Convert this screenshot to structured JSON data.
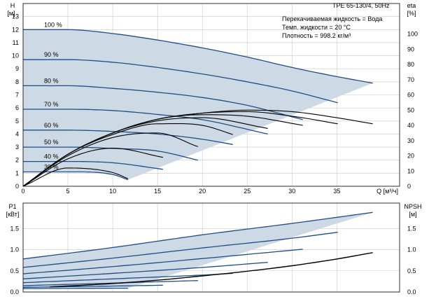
{
  "header": {
    "model": "TPE 65-130/4, 50Hz",
    "fluid_line": "Перекачиваемая жидкость = Вода",
    "temp_line": "Темп. жидкости = 20 °C",
    "density_line": "Плотность = 998.2 кг/м³"
  },
  "chart_data": [
    {
      "type": "line",
      "name": "H-Q",
      "ylabel_top": "H",
      "ylabel_unit": "[м]",
      "y2label_top": "eta",
      "y2label_unit": "[%]",
      "xlabel": "Q [м³/ч]",
      "xlim": [
        0,
        42
      ],
      "ylim": [
        0,
        14
      ],
      "y2lim": [
        0,
        120
      ],
      "xticks": [
        0,
        5,
        10,
        15,
        20,
        25,
        30,
        35
      ],
      "yticks": [
        0,
        1,
        2,
        3,
        4,
        5,
        6,
        7,
        8,
        9,
        10,
        11,
        12,
        13
      ],
      "y2ticks": [
        0,
        10,
        20,
        30,
        40,
        50,
        60,
        70,
        80,
        90,
        100
      ],
      "grid": true,
      "series": [
        {
          "name": "100 %",
          "x": [
            0,
            5,
            10,
            15,
            20,
            25,
            30,
            35,
            39
          ],
          "y": [
            12.0,
            12.0,
            11.7,
            11.2,
            10.6,
            9.9,
            9.1,
            8.4,
            7.9
          ]
        },
        {
          "name": "90 %",
          "x": [
            0,
            5,
            10,
            15,
            20,
            25,
            30,
            35.1
          ],
          "y": [
            9.7,
            9.7,
            9.5,
            9.1,
            8.6,
            8.0,
            7.3,
            6.4
          ]
        },
        {
          "name": "80 %",
          "x": [
            0,
            5,
            10,
            15,
            20,
            25,
            31.2
          ],
          "y": [
            7.7,
            7.7,
            7.5,
            7.2,
            6.8,
            6.2,
            5.1
          ]
        },
        {
          "name": "70 %",
          "x": [
            0,
            5,
            10,
            15,
            20,
            27.3
          ],
          "y": [
            5.9,
            5.9,
            5.8,
            5.5,
            5.1,
            4.0
          ]
        },
        {
          "name": "60 %",
          "x": [
            0,
            5,
            10,
            15,
            20,
            23.4
          ],
          "y": [
            4.3,
            4.3,
            4.2,
            4.0,
            3.6,
            3.2
          ]
        },
        {
          "name": "50 %",
          "x": [
            0,
            5,
            10,
            15,
            19.5
          ],
          "y": [
            3.0,
            3.0,
            2.9,
            2.7,
            2.0
          ]
        },
        {
          "name": "40 %",
          "x": [
            0,
            5,
            10,
            15.6
          ],
          "y": [
            1.9,
            1.9,
            1.8,
            1.3
          ]
        },
        {
          "name": "30 %",
          "x": [
            0,
            5,
            10,
            11.7
          ],
          "y": [
            1.1,
            1.1,
            0.9,
            0.5
          ]
        }
      ],
      "efficiency_series": [
        {
          "x": [
            0,
            5,
            10,
            15,
            20,
            25,
            30,
            35,
            39
          ],
          "y": [
            0,
            21,
            35,
            44,
            48,
            50,
            49,
            45,
            41
          ]
        },
        {
          "x": [
            0,
            5,
            10,
            15,
            20,
            25,
            30,
            35.1
          ],
          "y": [
            0,
            21,
            35,
            44,
            48,
            49,
            46,
            41
          ]
        },
        {
          "x": [
            0,
            5,
            10,
            15,
            20,
            25,
            31.2
          ],
          "y": [
            0,
            21,
            35,
            44,
            47,
            46,
            40
          ]
        },
        {
          "x": [
            0,
            5,
            10,
            15,
            20,
            27.3
          ],
          "y": [
            0,
            21,
            35,
            43,
            45,
            38
          ]
        },
        {
          "x": [
            0,
            5,
            10,
            15,
            20,
            23.4
          ],
          "y": [
            0,
            21,
            34,
            41,
            40,
            34
          ]
        },
        {
          "x": [
            0,
            5,
            10,
            15,
            19.5
          ],
          "y": [
            0,
            20,
            32,
            35,
            26
          ]
        },
        {
          "x": [
            0,
            5,
            10,
            15.6
          ],
          "y": [
            0,
            18,
            25,
            19
          ]
        },
        {
          "x": [
            0,
            5,
            10,
            11.7
          ],
          "y": [
            0,
            12,
            9,
            5
          ]
        }
      ]
    },
    {
      "type": "line",
      "name": "P1-Q",
      "ylabel_top": "P1",
      "ylabel_unit": "[кВт]",
      "y2label_top": "NPSH",
      "y2label_unit": "[м]",
      "xlim": [
        0,
        42
      ],
      "ylim": [
        0,
        2.1
      ],
      "y2lim": [
        0,
        2.1
      ],
      "yticks": [
        0,
        0.5,
        1.0,
        1.5
      ],
      "yticklabels": [
        "0.0",
        "0.5",
        "1.0",
        "1.5"
      ],
      "grid": true,
      "series": [
        {
          "name": "100 %",
          "x": [
            0,
            10,
            20,
            30,
            39
          ],
          "y": [
            0.78,
            1.05,
            1.35,
            1.62,
            1.88
          ]
        },
        {
          "name": "90 %",
          "x": [
            0,
            10,
            20,
            30,
            35.1
          ],
          "y": [
            0.58,
            0.8,
            1.04,
            1.27,
            1.41
          ]
        },
        {
          "name": "80 %",
          "x": [
            0,
            10,
            20,
            31.2
          ],
          "y": [
            0.43,
            0.6,
            0.79,
            1.01
          ]
        },
        {
          "name": "70 %",
          "x": [
            0,
            10,
            20,
            27.3
          ],
          "y": [
            0.31,
            0.44,
            0.58,
            0.7
          ]
        },
        {
          "name": "60 %",
          "x": [
            0,
            10,
            20,
            23.4
          ],
          "y": [
            0.22,
            0.31,
            0.4,
            0.44
          ]
        },
        {
          "name": "50 %",
          "x": [
            0,
            10,
            19.5
          ],
          "y": [
            0.15,
            0.21,
            0.27
          ]
        },
        {
          "name": "40 %",
          "x": [
            0,
            10,
            15.6
          ],
          "y": [
            0.11,
            0.14,
            0.16
          ]
        },
        {
          "name": "30 %",
          "x": [
            0,
            11.7
          ],
          "y": [
            0.08,
            0.09
          ]
        }
      ],
      "npsh_series": {
        "x": [
          3,
          10,
          15,
          20,
          25,
          30,
          35,
          39
        ],
        "y": [
          0.12,
          0.2,
          0.28,
          0.38,
          0.49,
          0.62,
          0.78,
          0.93
        ]
      }
    }
  ]
}
